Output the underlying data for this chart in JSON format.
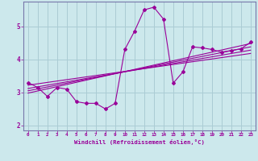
{
  "xlabel": "Windchill (Refroidissement éolien,°C)",
  "bg_color": "#cce8ec",
  "grid_color": "#aaccd4",
  "line_color": "#990099",
  "spine_color": "#7777aa",
  "xlim": [
    -0.5,
    23.5
  ],
  "ylim": [
    1.85,
    5.75
  ],
  "xticks": [
    0,
    1,
    2,
    3,
    4,
    5,
    6,
    7,
    8,
    9,
    10,
    11,
    12,
    13,
    14,
    15,
    16,
    17,
    18,
    19,
    20,
    21,
    22,
    23
  ],
  "yticks": [
    2,
    3,
    4,
    5
  ],
  "curve_x": [
    0,
    1,
    2,
    3,
    4,
    5,
    6,
    7,
    8,
    9,
    10,
    11,
    12,
    13,
    14,
    15,
    16,
    17,
    18,
    19,
    20,
    21,
    22,
    23
  ],
  "curve_y": [
    3.3,
    3.15,
    2.88,
    3.15,
    3.1,
    2.72,
    2.67,
    2.67,
    2.5,
    2.67,
    4.3,
    4.85,
    5.5,
    5.58,
    5.22,
    3.28,
    3.62,
    4.38,
    4.35,
    4.3,
    4.22,
    4.27,
    4.32,
    4.52
  ],
  "line1_x": [
    0,
    23
  ],
  "line1_y": [
    3.22,
    4.18
  ],
  "line2_x": [
    0,
    23
  ],
  "line2_y": [
    3.12,
    4.28
  ],
  "line3_x": [
    0,
    23
  ],
  "line3_y": [
    3.05,
    4.38
  ],
  "line4_x": [
    0,
    23
  ],
  "line4_y": [
    2.98,
    4.48
  ]
}
